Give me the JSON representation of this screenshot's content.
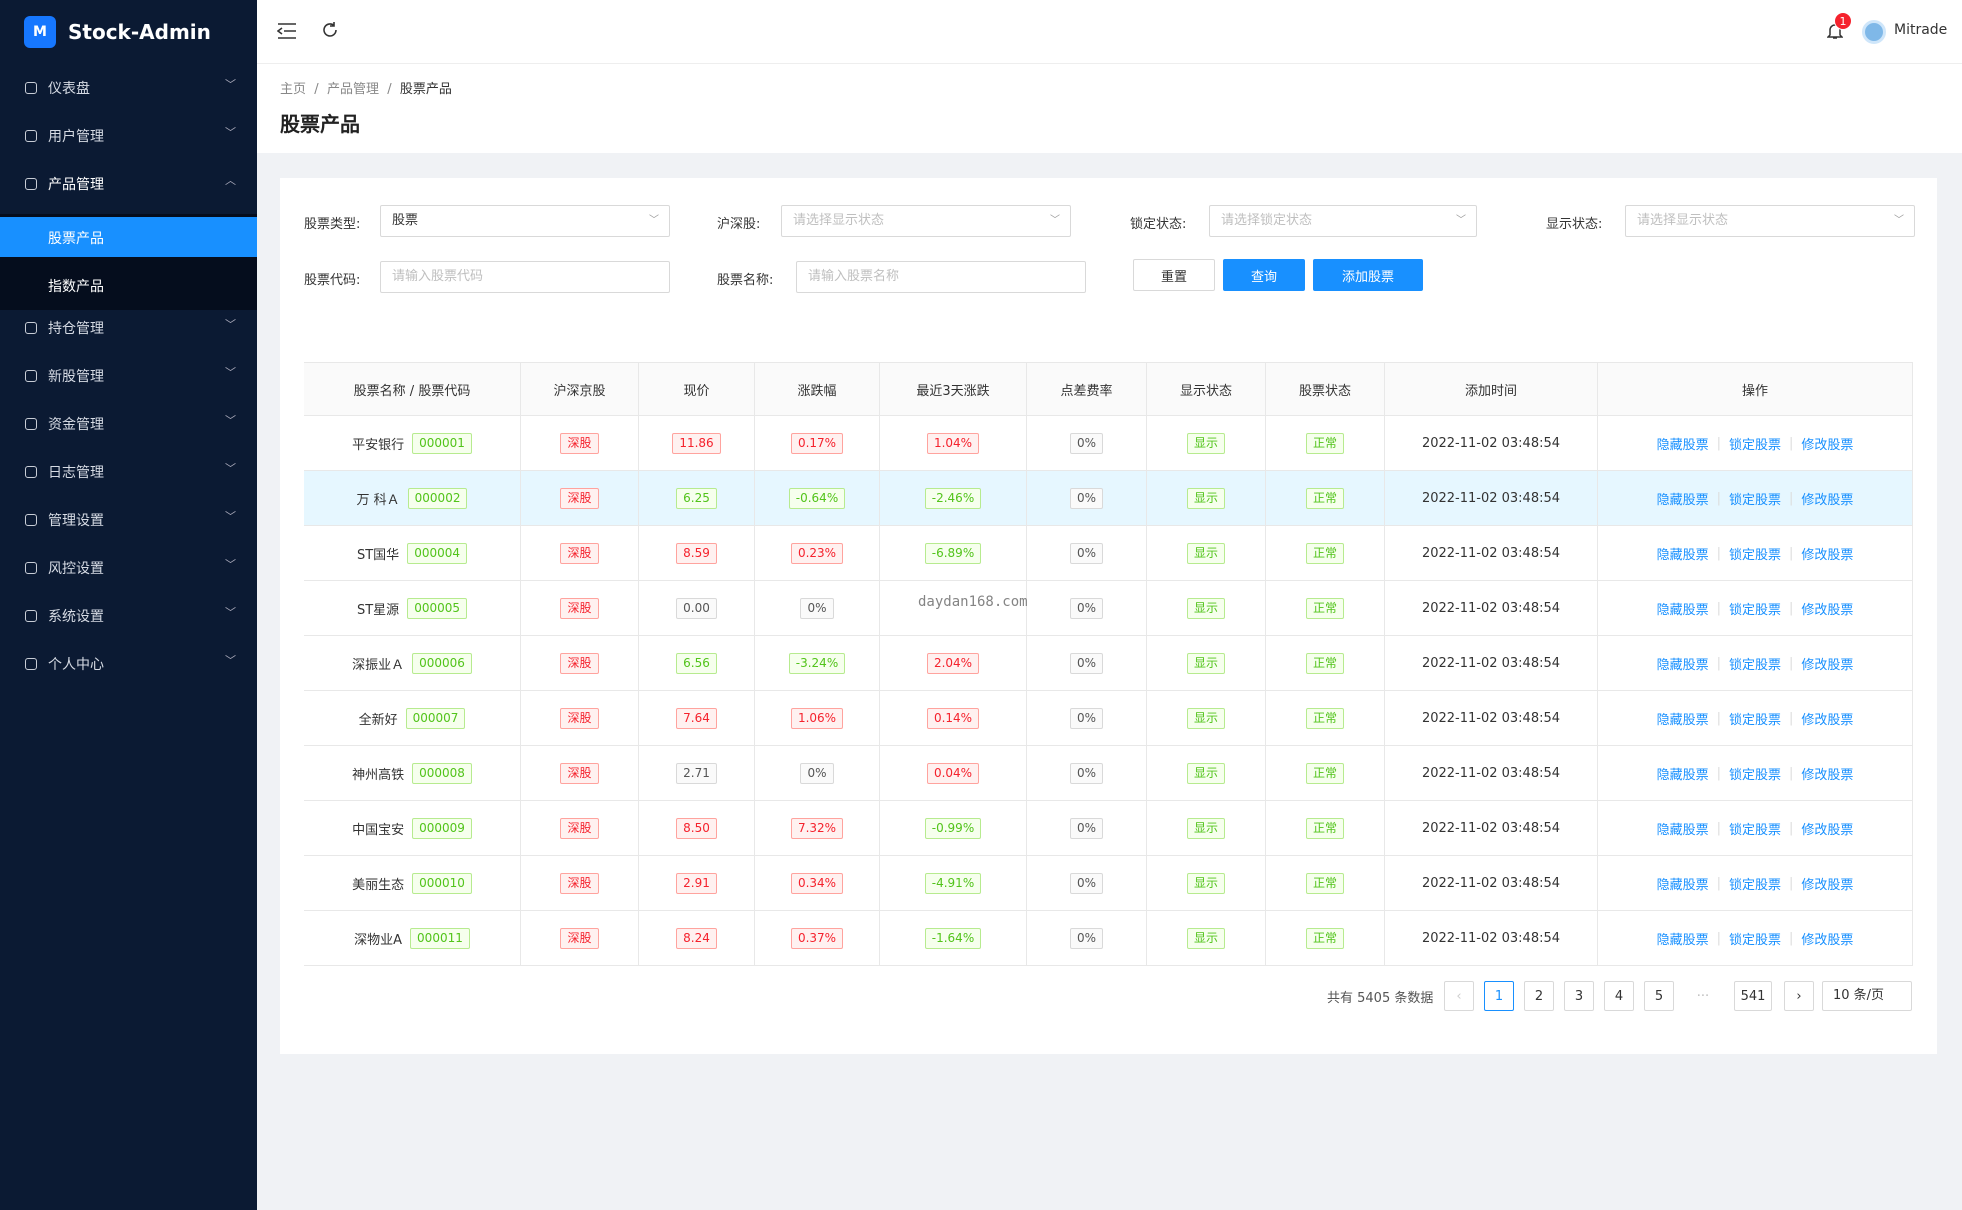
{
  "sidebar": {
    "brand": "Stock-Admin",
    "menu": [
      {
        "label": "仪表盘"
      },
      {
        "label": "用户管理"
      },
      {
        "label": "产品管理",
        "open": true,
        "children": [
          "股票产品",
          "指数产品"
        ]
      },
      {
        "label": "持仓管理"
      },
      {
        "label": "新股管理"
      },
      {
        "label": "资金管理"
      },
      {
        "label": "日志管理"
      },
      {
        "label": "管理设置"
      },
      {
        "label": "风控设置"
      },
      {
        "label": "系统设置"
      },
      {
        "label": "个人中心"
      }
    ]
  },
  "header": {
    "badge": "1",
    "user": "Mitrade"
  },
  "breadcrumb": [
    "主页",
    "产品管理",
    "股票产品"
  ],
  "title": "股票产品",
  "filters": [
    {
      "label": "股票类型:",
      "value": "股票"
    },
    {
      "label": "沪深股:",
      "placeholder": "请选择显示状态"
    },
    {
      "label": "锁定状态:",
      "placeholder": "请选择锁定状态"
    },
    {
      "label": "显示状态:",
      "placeholder": "请选择显示状态"
    },
    {
      "label": "股票代码:",
      "placeholder": "请输入股票代码"
    },
    {
      "label": "股票名称:",
      "placeholder": "请输入股票名称"
    }
  ],
  "buttons": [
    "重置",
    "查询",
    "添加股票"
  ],
  "table": {
    "columns": [
      "股票名称 / 股票代码",
      "沪深京股",
      "现价",
      "涨跌幅",
      "最近3天涨跌",
      "点差费率",
      "显示状态",
      "股票状态",
      "添加时间",
      "操作"
    ],
    "actions": [
      "隐藏股票",
      "锁定股票",
      "修改股票"
    ],
    "rows": [
      [
        "平安银行",
        "000001",
        "深股",
        "11.86",
        "0.17%",
        "1.04%",
        "0%",
        "显示",
        "正常",
        "2022-11-02 03:48:54"
      ],
      [
        "万 科Ａ",
        "000002",
        "深股",
        "6.25",
        "-0.64%",
        "-2.46%",
        "0%",
        "显示",
        "正常",
        "2022-11-02 03:48:54"
      ],
      [
        "ST国华",
        "000004",
        "深股",
        "8.59",
        "0.23%",
        "-6.89%",
        "0%",
        "显示",
        "正常",
        "2022-11-02 03:48:54"
      ],
      [
        "ST星源",
        "000005",
        "深股",
        "0.00",
        "0%",
        null,
        "0%",
        "显示",
        "正常",
        "2022-11-02 03:48:54"
      ],
      [
        "深振业Ａ",
        "000006",
        "深股",
        "6.56",
        "-3.24%",
        "2.04%",
        "0%",
        "显示",
        "正常",
        "2022-11-02 03:48:54"
      ],
      [
        "全新好",
        "000007",
        "深股",
        "7.64",
        "1.06%",
        "0.14%",
        "0%",
        "显示",
        "正常",
        "2022-11-02 03:48:54"
      ],
      [
        "神州高铁",
        "000008",
        "深股",
        "2.71",
        "0%",
        "0.04%",
        "0%",
        "显示",
        "正常",
        "2022-11-02 03:48:54"
      ],
      [
        "中国宝安",
        "000009",
        "深股",
        "8.50",
        "7.32%",
        "-0.99%",
        "0%",
        "显示",
        "正常",
        "2022-11-02 03:48:54"
      ],
      [
        "美丽生态",
        "000010",
        "深股",
        "2.91",
        "0.34%",
        "-4.91%",
        "0%",
        "显示",
        "正常",
        "2022-11-02 03:48:54"
      ],
      [
        "深物业A",
        "000011",
        "深股",
        "8.24",
        "0.37%",
        "-1.64%",
        "0%",
        "显示",
        "正常",
        "2022-11-02 03:48:54"
      ]
    ],
    "highlight_row": 1
  },
  "watermark": "daydan168.com",
  "pagination": {
    "total": "共有 5405 条数据",
    "pages": [
      "1",
      "2",
      "3",
      "4",
      "5",
      "···",
      "541"
    ],
    "current": 0,
    "size": "10 条/页"
  }
}
